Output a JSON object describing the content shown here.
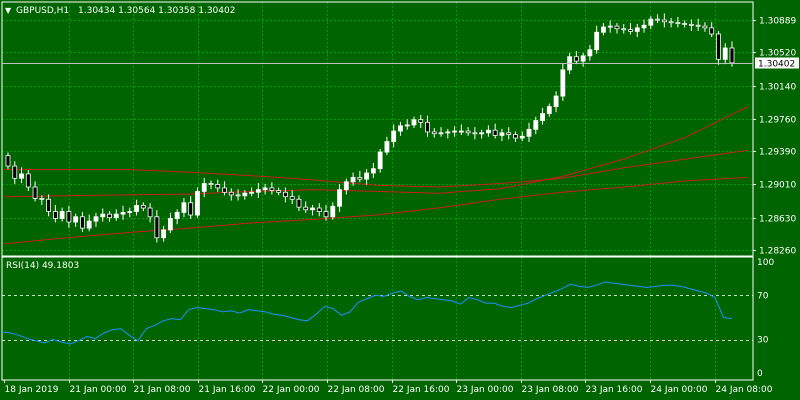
{
  "header": {
    "arrow": "▼",
    "symbol": "GBPUSD,H1",
    "ohlc": "1.30434 1.30564 1.30358 1.30402"
  },
  "rsi": {
    "label": "RSI(14) 49.1803",
    "levels": [
      70,
      30
    ],
    "axis_labels": [
      "100",
      "70",
      "30",
      "0"
    ]
  },
  "colors": {
    "background": "#006400",
    "grid": "#00a000",
    "text": "#ffffff",
    "candle_bull": "#ffffff",
    "candle_bear": "#000000",
    "ma": "#c81e1e",
    "rsi": "#1e90ff"
  },
  "chart_data": [
    {
      "type": "line",
      "series_kind": "candlestick",
      "symbol": "GBPUSD",
      "timeframe": "H1",
      "current_price": 1.30402,
      "current_price_label": "1.30402",
      "ylim": [
        1.2826,
        1.3089
      ],
      "yticks": [
        "1.30889",
        "1.30520",
        "1.30140",
        "1.29760",
        "1.29390",
        "1.29010",
        "1.28630",
        "1.28260"
      ],
      "xticks": [
        "18 Jan 2019",
        "21 Jan 00:00",
        "21 Jan 08:00",
        "21 Jan 16:00",
        "22 Jan 00:00",
        "22 Jan 08:00",
        "22 Jan 16:00",
        "23 Jan 00:00",
        "23 Jan 08:00",
        "23 Jan 16:00",
        "24 Jan 00:00",
        "24 Jan 08:00"
      ],
      "closes": [
        1.2922,
        1.2908,
        1.2913,
        1.2898,
        1.2885,
        1.2884,
        1.287,
        1.2862,
        1.287,
        1.2858,
        1.2864,
        1.2851,
        1.2859,
        1.2864,
        1.2867,
        1.2863,
        1.2867,
        1.2869,
        1.287,
        1.2877,
        1.2874,
        1.2864,
        1.284,
        1.2849,
        1.2862,
        1.2869,
        1.288,
        1.2866,
        1.2893,
        1.2902,
        1.2901,
        1.2897,
        1.2892,
        1.2889,
        1.2888,
        1.2891,
        1.2892,
        1.2895,
        1.2897,
        1.2894,
        1.2892,
        1.2887,
        1.2884,
        1.2875,
        1.2872,
        1.2874,
        1.287,
        1.2864,
        1.2876,
        1.2895,
        1.2904,
        1.2909,
        1.2907,
        1.2914,
        1.2919,
        1.2938,
        1.295,
        1.2962,
        1.2968,
        1.2969,
        1.2975,
        1.2972,
        1.2961,
        1.2959,
        1.296,
        1.2961,
        1.2962,
        1.2962,
        1.296,
        1.2959,
        1.296,
        1.2963,
        1.2957,
        1.296,
        1.2958,
        1.2954,
        1.2956,
        1.2964,
        1.2974,
        1.2982,
        1.299,
        1.3002,
        1.3032,
        1.3047,
        1.3042,
        1.3048,
        1.3055,
        1.3075,
        1.3081,
        1.3082,
        1.3079,
        1.3078,
        1.3076,
        1.308,
        1.3083,
        1.309,
        1.3089,
        1.3087,
        1.3086,
        1.3085,
        1.3084,
        1.3083,
        1.3082,
        1.308,
        1.3073,
        1.3044,
        1.3057,
        1.304
      ],
      "ma": [
        {
          "values": [
            1.2887,
            1.2888,
            1.2889,
            1.289,
            1.2893,
            1.2895,
            1.2893,
            1.2891,
            1.2896,
            1.291,
            1.293,
            1.2955,
            1.299
          ]
        },
        {
          "values": [
            1.2918,
            1.2918,
            1.2918,
            1.2915,
            1.2911,
            1.2906,
            1.29,
            1.2898,
            1.2902,
            1.2908,
            1.292,
            1.293,
            1.294
          ]
        },
        {
          "values": [
            1.2833,
            1.284,
            1.2846,
            1.2851,
            1.2857,
            1.2861,
            1.2866,
            1.2874,
            1.2884,
            1.2892,
            1.2898,
            1.2905,
            1.2909
          ]
        }
      ]
    },
    {
      "type": "line",
      "name": "RSI(14)",
      "ylim": [
        0,
        100
      ],
      "values": [
        37,
        36,
        34,
        31,
        29,
        27,
        30,
        28,
        26,
        29,
        33,
        31,
        36,
        39,
        40,
        34,
        29,
        40,
        43,
        47,
        49,
        48,
        57,
        59,
        58,
        57,
        55,
        56,
        54,
        57,
        56,
        55,
        53,
        52,
        50,
        48,
        47,
        53,
        60,
        58,
        52,
        55,
        64,
        67,
        70,
        69,
        72,
        74,
        69,
        66,
        68,
        67,
        66,
        65,
        62,
        68,
        66,
        63,
        63,
        60,
        59,
        61,
        63,
        67,
        70,
        73,
        76,
        80,
        78,
        77,
        79,
        82,
        81,
        80,
        79,
        78,
        77,
        78,
        79,
        79,
        78,
        76,
        74,
        72,
        68,
        50,
        49
      ]
    }
  ]
}
